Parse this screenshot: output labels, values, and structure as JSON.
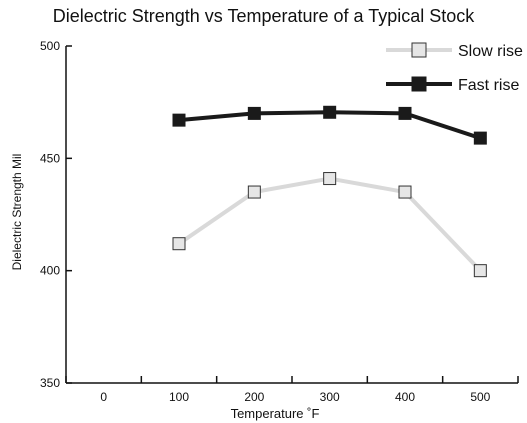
{
  "chart_data": {
    "type": "line",
    "title": "Dielectric Strength vs Temperature of a Typical Stock",
    "xlabel": "Temperature ˚F",
    "ylabel": "Dielectric Strength Mil",
    "x_ticks": [
      "0",
      "100",
      "200",
      "300",
      "400",
      "500"
    ],
    "y_ticks": [
      "350",
      "400",
      "450",
      "500"
    ],
    "xlim": [
      -50,
      550
    ],
    "ylim": [
      350,
      500
    ],
    "grid": false,
    "legend_position": "top-right",
    "series": [
      {
        "name": "Slow rise",
        "x": [
          100,
          200,
          300,
          400,
          500
        ],
        "values": [
          412,
          435,
          441,
          435,
          400
        ],
        "line_color": "#d9d9d9",
        "marker_fill": "#e6e6e6",
        "marker_stroke": "#333333"
      },
      {
        "name": "Fast rise",
        "x": [
          100,
          200,
          300,
          400,
          500
        ],
        "values": [
          467,
          470,
          470.5,
          470,
          459
        ],
        "line_color": "#1a1a1a",
        "marker_fill": "#1a1a1a",
        "marker_stroke": "#1a1a1a"
      }
    ]
  }
}
